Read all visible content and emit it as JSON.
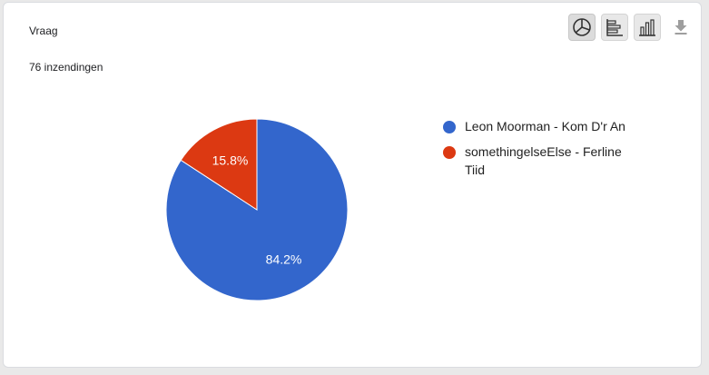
{
  "card": {
    "title": "Vraag",
    "response_count": "76 inzendingen"
  },
  "toolbar": {
    "icons": [
      "pie-chart-icon",
      "horizontal-bar-chart-icon",
      "column-chart-icon",
      "download-icon"
    ]
  },
  "chart_data": {
    "type": "pie",
    "title": "",
    "slices": [
      {
        "label": "Leon Moorman - Kom D'r An",
        "value": 84.2,
        "value_label": "84.2%",
        "color": "#3366cc"
      },
      {
        "label": "somethingelseElse - Ferline Tiid",
        "value": 15.8,
        "value_label": "15.8%",
        "color": "#dc3912"
      }
    ],
    "legend_position": "right"
  }
}
